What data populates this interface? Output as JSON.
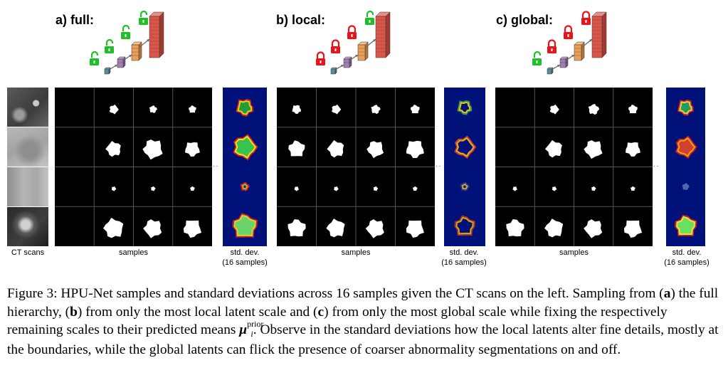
{
  "panels": [
    {
      "title": "a) full:",
      "locks": [
        "green",
        "green",
        "green",
        "green"
      ]
    },
    {
      "title": "b) local:",
      "locks": [
        "red",
        "red",
        "red",
        "green"
      ]
    },
    {
      "title": "c) global:",
      "locks": [
        "green",
        "red",
        "red",
        "red"
      ]
    }
  ],
  "colors": {
    "lock_open": "#1fbf2a",
    "lock_closed": "#e8141c",
    "std_background": "#00127a"
  },
  "labels": {
    "ct_scans": "CT scans",
    "samples": "samples",
    "std_dev_line1": "std. dev.",
    "std_dev_line2": "(16 samples)"
  },
  "caption": {
    "figure_label": "Figure 3:",
    "part1": "HPU-Net  samples and standard deviations across 16 samples given the CT scans on the left. Sampling from (",
    "a": "a",
    "part2": ") the full hierarchy, (",
    "b": "b",
    "part3": ") from only the most local latent scale and (",
    "c": "c",
    "part4": ") from only the most global scale while fixing the respectively remaining scales to their predicted means ",
    "mu": "μ",
    "mu_sup": "prior",
    "mu_sub": "i",
    "part5": ". Observe in the standard deviations how the local latents alter fine details, mostly at the boundaries, while the global latents can flick the presence of coarser abnormality segmentations on and off."
  }
}
